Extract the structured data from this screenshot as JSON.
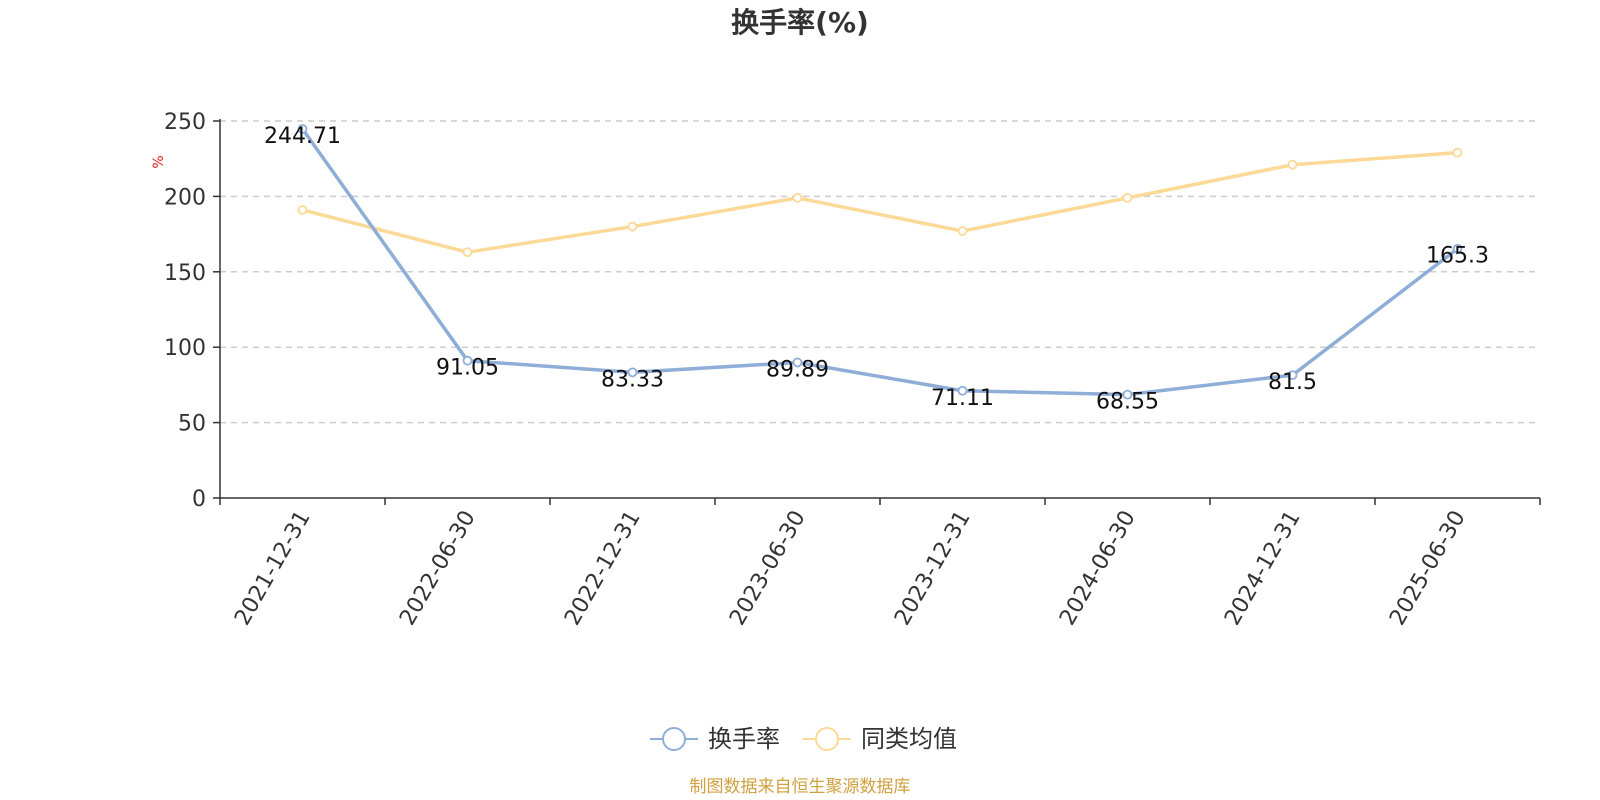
{
  "chart_data": {
    "type": "line",
    "title": "换手率(%)",
    "ylabel": "%",
    "ylim": [
      0,
      250
    ],
    "yticks": [
      0,
      50,
      100,
      150,
      200,
      250
    ],
    "grid": true,
    "legend_position": "bottom",
    "categories": [
      "2021-12-31",
      "2022-06-30",
      "2022-12-31",
      "2023-06-30",
      "2023-12-31",
      "2024-06-30",
      "2024-12-31",
      "2025-06-30"
    ],
    "series": [
      {
        "name": "换手率",
        "color": "#8eaed8",
        "values": [
          244.71,
          91.05,
          83.33,
          89.89,
          71.11,
          68.55,
          81.5,
          165.3
        ],
        "labels": [
          "244.71",
          "91.05",
          "83.33",
          "89.89",
          "71.11",
          "68.55",
          "81.5",
          "165.3"
        ],
        "show_labels": true
      },
      {
        "name": "同类均值",
        "color": "#fcd996",
        "values": [
          191,
          163,
          180,
          199,
          177,
          199,
          221,
          229
        ],
        "show_labels": false
      }
    ],
    "source_note": "制图数据来自恒生聚源数据库"
  }
}
